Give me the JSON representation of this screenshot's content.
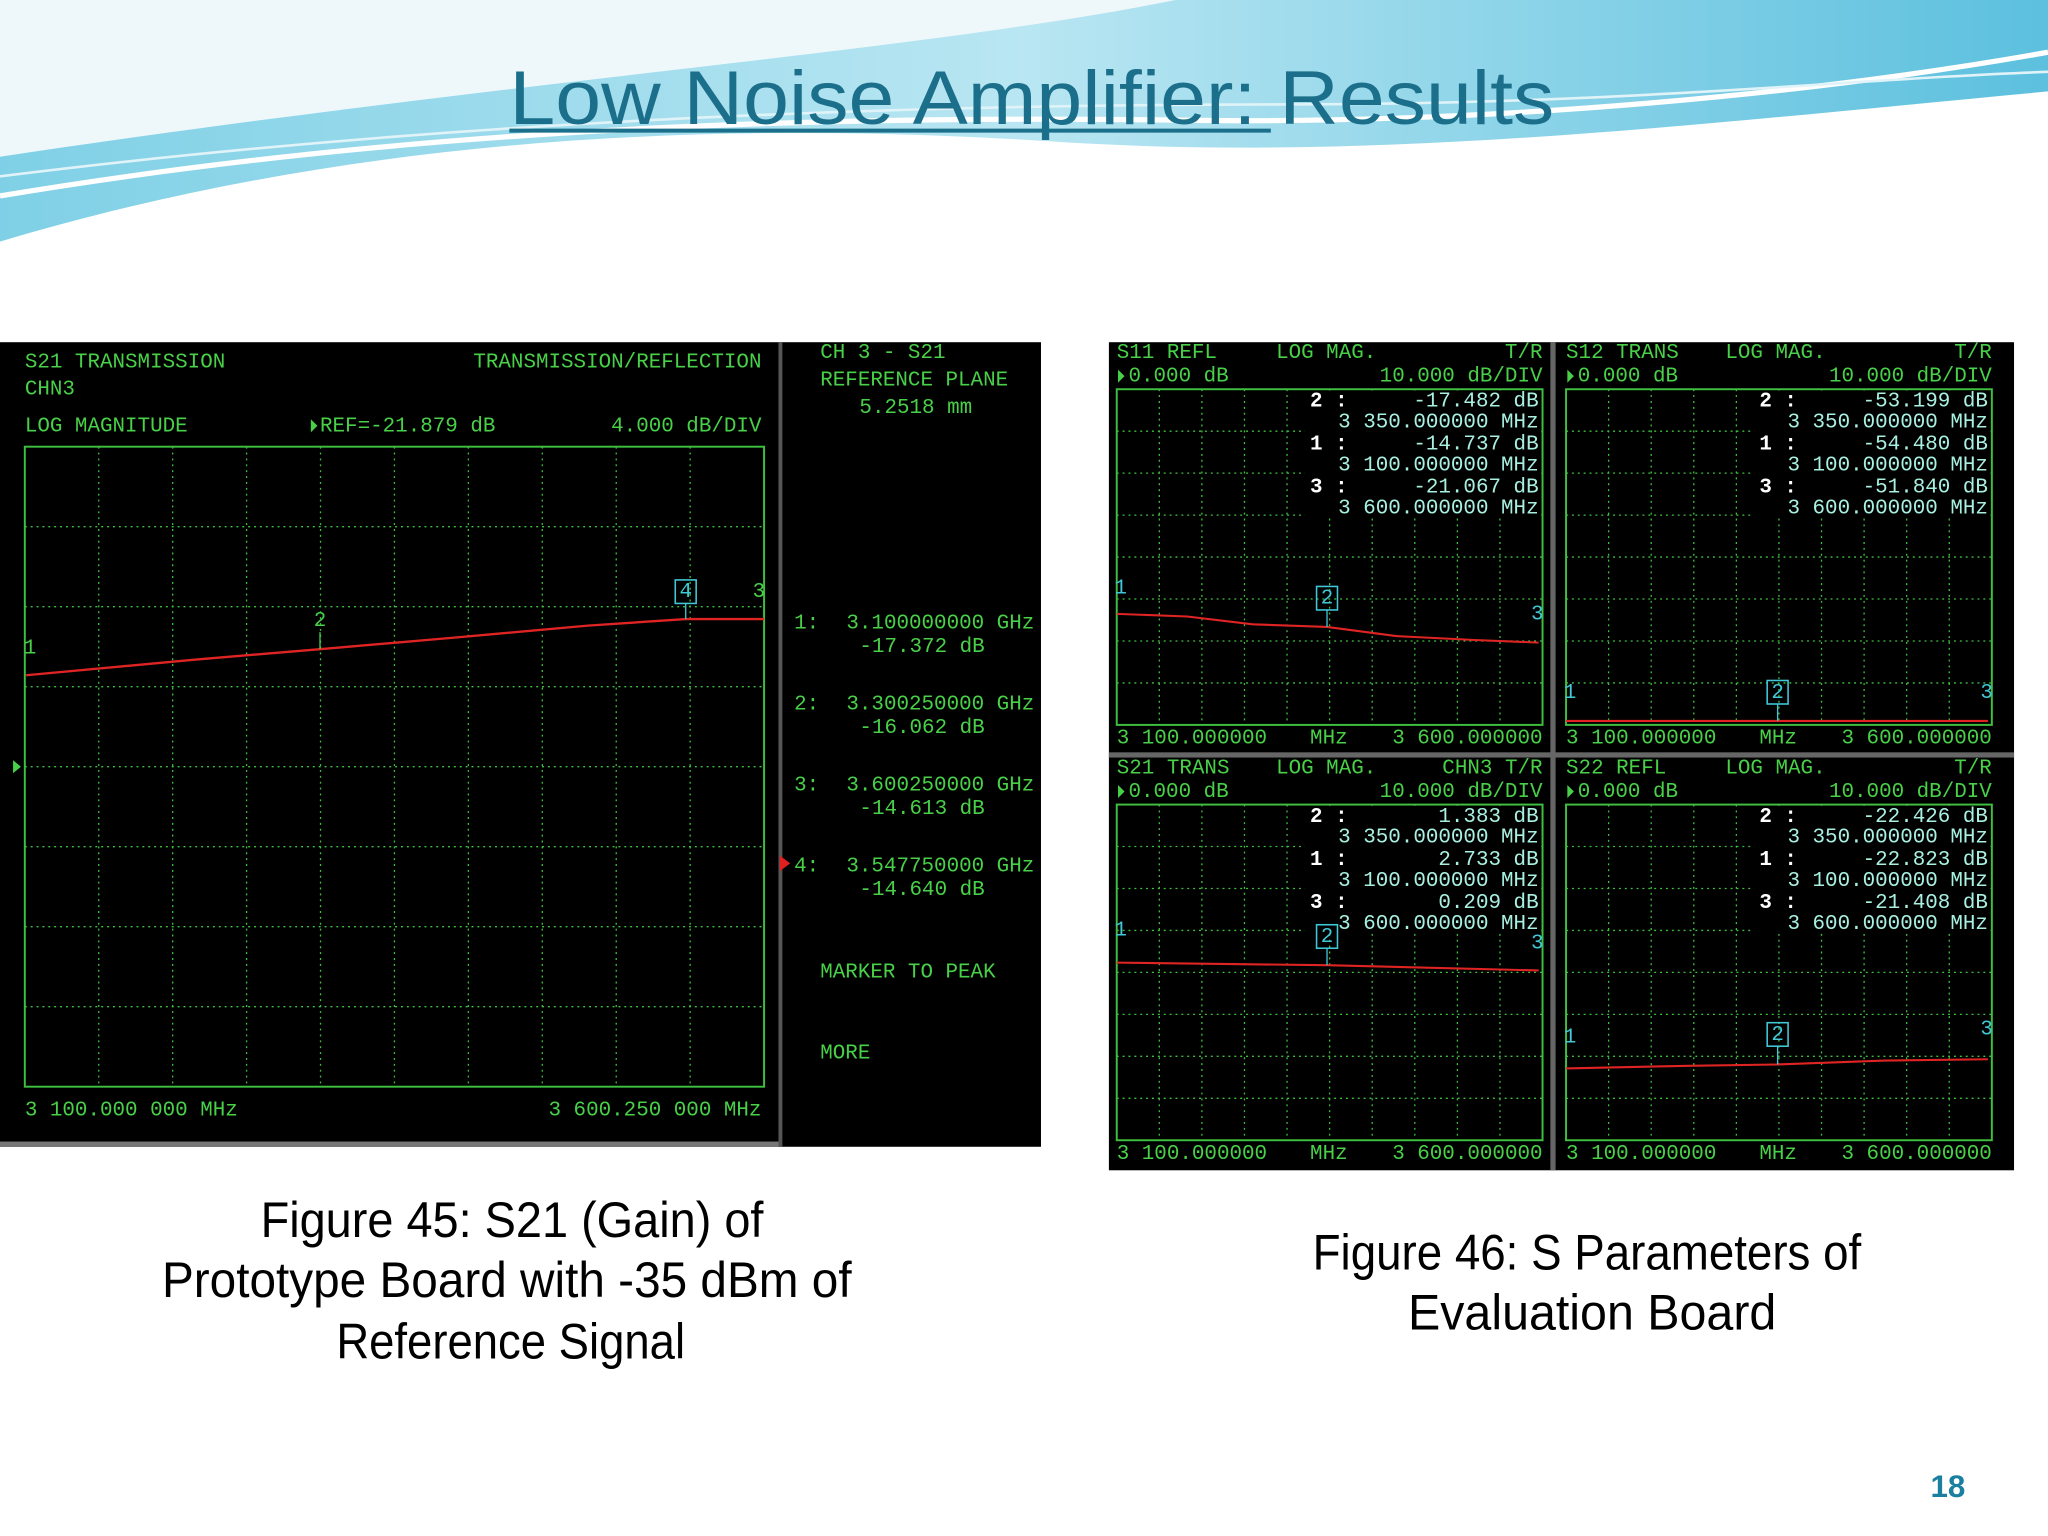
{
  "header": {
    "title": "Low Noise Amplifier: Results"
  },
  "figure45": {
    "trace_title": "S21 TRANSMISSION",
    "channel": "CHN3",
    "mode": "TRANSMISSION/REFLECTION",
    "format": "LOG MAGNITUDE",
    "reference": "REF=-21.879 dB",
    "scale": "4.000 dB/DIV",
    "start": "3 100.000 000 MHz",
    "stop": "3 600.250 000 MHz",
    "trace_markers": [
      "1",
      "2",
      "4",
      "3"
    ],
    "menu": {
      "channel": "CH 3 - S21",
      "label": "REFERENCE PLANE",
      "value": "5.2518 mm"
    },
    "markers": [
      {
        "id": "1:",
        "frequency": "3.100000000 GHz",
        "level": "-17.372 dB"
      },
      {
        "id": "2:",
        "frequency": "3.300250000 GHz",
        "level": "-16.062 dB"
      },
      {
        "id": "3:",
        "frequency": "3.600250000 GHz",
        "level": "-14.613 dB"
      },
      {
        "id": "4:",
        "frequency": "3.547750000 GHz",
        "level": "-14.640 dB"
      }
    ],
    "softkeys": [
      "MARKER TO PEAK",
      "MORE"
    ],
    "caption": [
      "Figure 45: S21 (Gain) of",
      "Prototype Board with -35 dBm of",
      "Reference Signal"
    ]
  },
  "figure46": {
    "panels": [
      {
        "header": [
          "S11 REFL",
          "LOG MAG.",
          "T/R"
        ],
        "reference": "0.000 dB",
        "scale": "10.000 dB/DIV",
        "readouts": [
          [
            "2 :",
            "-17.482 dB",
            "3 350.000000 MHz"
          ],
          [
            "1 :",
            "-14.737 dB",
            "3 100.000000 MHz"
          ],
          [
            "3 :",
            "-21.067 dB",
            "3 600.000000 MHz"
          ]
        ],
        "footer": [
          "3 100.000000",
          "MHz",
          "3 600.000000"
        ],
        "trace_markers": [
          "1",
          "2",
          "3"
        ]
      },
      {
        "header": [
          "S12 TRANS",
          "LOG MAG.",
          "T/R"
        ],
        "reference": "0.000 dB",
        "scale": "10.000 dB/DIV",
        "readouts": [
          [
            "2 :",
            "-53.199 dB",
            "3 350.000000 MHz"
          ],
          [
            "1 :",
            "-54.480 dB",
            "3 100.000000 MHz"
          ],
          [
            "3 :",
            "-51.840 dB",
            "3 600.000000 MHz"
          ]
        ],
        "footer": [
          "3 100.000000",
          "MHz",
          "3 600.000000"
        ],
        "trace_markers": [
          "1",
          "2",
          "3"
        ]
      },
      {
        "header": [
          "S21 TRANS",
          "LOG MAG.",
          "CHN3 T/R"
        ],
        "reference": "0.000 dB",
        "scale": "10.000 dB/DIV",
        "readouts": [
          [
            "2 :",
            "1.383 dB",
            "3 350.000000 MHz"
          ],
          [
            "1 :",
            "2.733 dB",
            "3 100.000000 MHz"
          ],
          [
            "3 :",
            "0.209 dB",
            "3 600.000000 MHz"
          ]
        ],
        "footer": [
          "3 100.000000",
          "MHz",
          "3 600.000000"
        ],
        "trace_markers": [
          "1",
          "2",
          "3"
        ]
      },
      {
        "header": [
          "S22 REFL",
          "LOG MAG.",
          "T/R"
        ],
        "reference": "0.000 dB",
        "scale": "10.000 dB/DIV",
        "readouts": [
          [
            "2 :",
            "-22.426 dB",
            "3 350.000000 MHz"
          ],
          [
            "1 :",
            "-22.823 dB",
            "3 100.000000 MHz"
          ],
          [
            "3 :",
            "-21.408 dB",
            "3 600.000000 MHz"
          ]
        ],
        "footer": [
          "3 100.000000",
          "MHz",
          "3 600.000000"
        ],
        "trace_markers": [
          "1",
          "2",
          "3"
        ]
      }
    ],
    "caption": [
      "Figure 46: S Parameters of",
      "Evaluation Board"
    ]
  },
  "footer": {
    "slide_number": "18"
  }
}
